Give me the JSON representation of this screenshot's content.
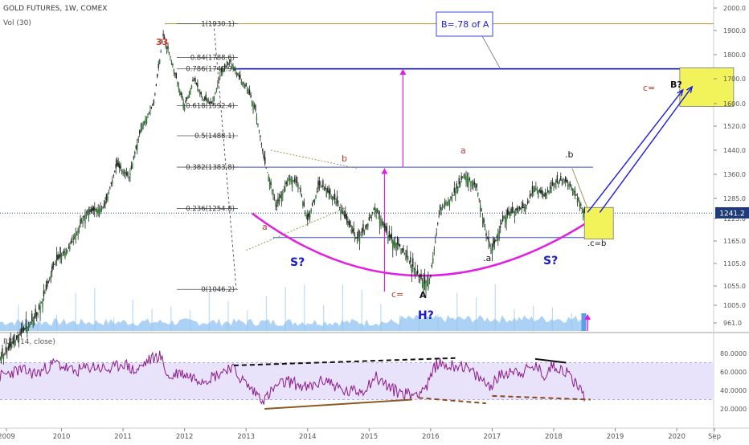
{
  "header": {
    "symbol": "GOLD FUTURES, 1W, COMEX",
    "volume_label": "Vol (30)",
    "rsi_label": "RSI (14, close)"
  },
  "colors": {
    "candle": "#1e2a1e",
    "volume": "#8fc3f0",
    "magenta": "#e11ee1",
    "purple": "#8b1a8b",
    "blue": "#1a1ae0",
    "fib": "#555555",
    "gold": "#b8a040",
    "yellow": "#f2f25a",
    "rsi_band": "#e8e2fa",
    "rsi_line": "#8b1a8b",
    "dark_red": "#8b1a1a",
    "price_tag": "#1f3b7a"
  },
  "chart_data": [
    {
      "type": "line",
      "title": "GOLD FUTURES, 1W, COMEX",
      "x_axis": {
        "range": [
          2009.0,
          2020.6
        ],
        "ticks": [
          "2009",
          "2010",
          "2011",
          "2012",
          "2013",
          "2014",
          "2015",
          "2016",
          "2017",
          "2018",
          "2019",
          "2020",
          "Sep"
        ]
      },
      "y_axis": {
        "position": "right",
        "range": [
          940,
          2020
        ],
        "ticks": [
          "2000.0",
          "1900.0",
          "1800.0",
          "1700.0",
          "1600.0",
          "1520.0",
          "1440.0",
          "1360.0",
          "1285.0",
          "1225.0",
          "1165.0",
          "1105.0",
          "1055.0",
          "1005.0",
          "961.0"
        ]
      },
      "current_price": "1241.2",
      "series": [
        {
          "x": [
            2009.0,
            2009.3,
            2009.6,
            2009.9,
            2010.1,
            2010.4,
            2010.7,
            2010.9,
            2011.1,
            2011.3,
            2011.5,
            2011.65,
            2011.75,
            2011.9,
            2012.0,
            2012.15,
            2012.3,
            2012.45,
            2012.6,
            2012.75,
            2012.9,
            2013.0,
            2013.15,
            2013.3,
            2013.5,
            2013.7,
            2013.85,
            2014.0,
            2014.2,
            2014.45,
            2014.6,
            2014.8,
            2014.95,
            2015.1,
            2015.3,
            2015.5,
            2015.7,
            2015.9,
            2016.0,
            2016.15,
            2016.35,
            2016.55,
            2016.75,
            2016.9,
            2017.0,
            2017.2,
            2017.4,
            2017.55,
            2017.7,
            2017.85,
            2018.0,
            2018.15,
            2018.3,
            2018.5
          ],
          "y": [
            870,
            925,
            980,
            1110,
            1140,
            1240,
            1260,
            1390,
            1350,
            1520,
            1600,
            1880,
            1810,
            1670,
            1590,
            1700,
            1620,
            1600,
            1730,
            1770,
            1700,
            1670,
            1580,
            1400,
            1260,
            1350,
            1330,
            1220,
            1330,
            1280,
            1230,
            1170,
            1200,
            1260,
            1180,
            1150,
            1100,
            1060,
            1075,
            1250,
            1290,
            1360,
            1320,
            1180,
            1140,
            1230,
            1250,
            1260,
            1320,
            1290,
            1330,
            1345,
            1320,
            1241
          ]
        }
      ],
      "fib_levels": [
        {
          "label": "1(1930.1)",
          "value": 1930.1
        },
        {
          "label": "0.84(1788.6)",
          "value": 1788.6
        },
        {
          "label": "0.786(1740.9)",
          "value": 1740.9
        },
        {
          "label": "0.618(1592.4)",
          "value": 1592.4
        },
        {
          "label": "0.5(1488.1)",
          "value": 1488.1
        },
        {
          "label": "0.382(1383.8)",
          "value": 1383.8
        },
        {
          "label": "0.236(1254.8)",
          "value": 1254.8
        },
        {
          "label": "0(1046.2)",
          "value": 1046.2
        }
      ],
      "annotations": [
        "33",
        "a",
        "b",
        "S?",
        "c=",
        "A",
        "H?",
        "a",
        ".a",
        "S?",
        ".b",
        ".c=b",
        "c=",
        "B?",
        "B=.78 of A"
      ],
      "horizontal_lines": [
        1930.1,
        1740.9,
        1383.8,
        1174
      ]
    },
    {
      "type": "line",
      "title": "RSI (14, close)",
      "y_axis": {
        "position": "right",
        "range": [
          12,
          88
        ],
        "ticks": [
          "80.0000",
          "60.0000",
          "40.0000",
          "20.0000"
        ],
        "band": [
          30,
          70
        ]
      },
      "series": [
        {
          "x": [
            2009.0,
            2009.3,
            2009.6,
            2009.9,
            2010.2,
            2010.5,
            2010.8,
            2011.0,
            2011.2,
            2011.4,
            2011.6,
            2011.75,
            2011.9,
            2012.1,
            2012.3,
            2012.5,
            2012.75,
            2012.9,
            2013.1,
            2013.3,
            2013.5,
            2013.7,
            2014.0,
            2014.3,
            2014.6,
            2014.9,
            2015.1,
            2015.4,
            2015.7,
            2015.95,
            2016.1,
            2016.3,
            2016.5,
            2016.75,
            2016.95,
            2017.1,
            2017.3,
            2017.5,
            2017.7,
            2017.85,
            2018.0,
            2018.2,
            2018.4,
            2018.5
          ],
          "y": [
            55,
            62,
            58,
            70,
            60,
            66,
            62,
            70,
            60,
            72,
            78,
            52,
            60,
            55,
            52,
            56,
            66,
            54,
            40,
            30,
            45,
            50,
            42,
            52,
            38,
            40,
            55,
            40,
            35,
            45,
            70,
            66,
            68,
            55,
            45,
            54,
            62,
            60,
            66,
            56,
            68,
            60,
            45,
            34
          ]
        }
      ],
      "trendlines": [
        "resistance",
        "support",
        "divergence"
      ]
    }
  ]
}
